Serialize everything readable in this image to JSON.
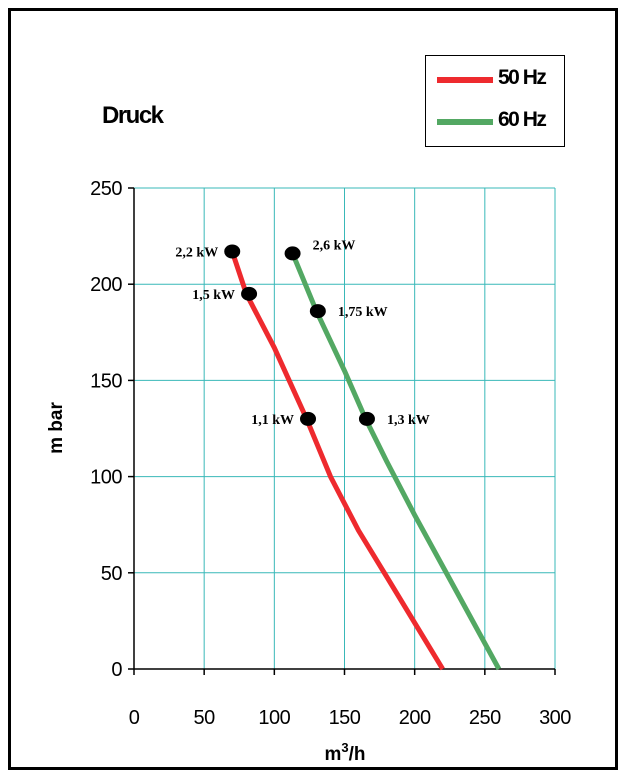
{
  "chart_data": {
    "type": "line",
    "title": "Druck",
    "xlabel": "m³/h",
    "ylabel": "m bar",
    "xlim": [
      0,
      300
    ],
    "ylim": [
      0,
      250
    ],
    "x_ticks": [
      0,
      50,
      100,
      150,
      200,
      250,
      300
    ],
    "y_ticks": [
      0,
      50,
      100,
      150,
      200,
      250
    ],
    "grid": true,
    "legend_position": "top-right",
    "series": [
      {
        "name": "50 Hz",
        "color": "#ee2a2e",
        "points": [
          [
            70,
            217
          ],
          [
            80,
            195
          ],
          [
            100,
            167
          ],
          [
            123,
            130
          ],
          [
            140,
            100
          ],
          [
            160,
            72
          ],
          [
            180,
            48
          ],
          [
            220,
            0
          ]
        ]
      },
      {
        "name": "60 Hz",
        "color": "#53a863",
        "points": [
          [
            113,
            216
          ],
          [
            130,
            186
          ],
          [
            150,
            155
          ],
          [
            165,
            130
          ],
          [
            180,
            108
          ],
          [
            200,
            80
          ],
          [
            230,
            40
          ],
          [
            260,
            0
          ]
        ]
      }
    ],
    "markers": [
      {
        "x": 70,
        "y": 217,
        "label": "2,2 kW",
        "side": "left"
      },
      {
        "x": 82,
        "y": 195,
        "label": "1,5 kW",
        "side": "left"
      },
      {
        "x": 124,
        "y": 130,
        "label": "1,1 kW",
        "side": "left"
      },
      {
        "x": 113,
        "y": 216,
        "label": "2,6 kW",
        "side": "right"
      },
      {
        "x": 131,
        "y": 186,
        "label": "1,75 kW",
        "side": "right"
      },
      {
        "x": 166,
        "y": 130,
        "label": "1,3 kW",
        "side": "right"
      }
    ]
  }
}
